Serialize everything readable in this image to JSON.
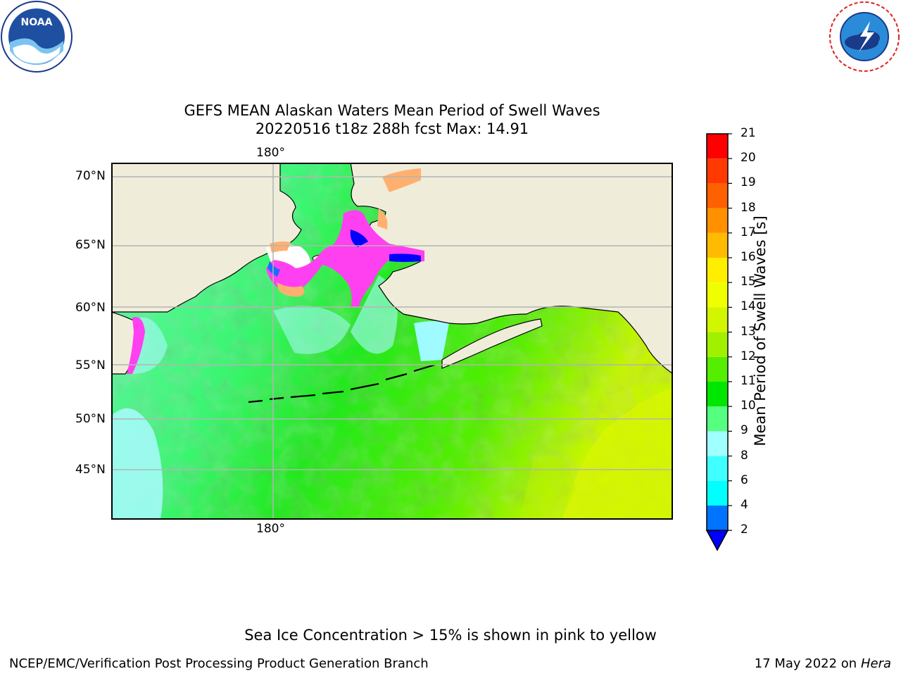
{
  "title": {
    "line1": "GEFS MEAN Alaskan Waters Mean Period of Swell Waves",
    "line2": "20220516 t18z 288h fcst   Max: 14.91"
  },
  "logos": {
    "left": {
      "name": "noaa-logo",
      "text": "NOAA",
      "ring_text": "NATIONAL OCEANIC AND ATMOSPHERIC ADMINISTRATION · U.S. DEPARTMENT OF COMMERCE"
    },
    "right": {
      "name": "nws-logo",
      "ring_text": "NATIONAL WEATHER SERVICE"
    }
  },
  "map": {
    "lon_labels": [
      "180°",
      "180°"
    ],
    "lat_labels": [
      "70°N",
      "65°N",
      "60°N",
      "55°N",
      "50°N",
      "45°N"
    ],
    "colors": {
      "land": "#efedda",
      "ice_free_white": "#ffffff",
      "coast": "#000000",
      "grid": "#b4b4b4"
    }
  },
  "colorbar": {
    "label": "Mean Period of Swell Waves [s]",
    "ticks": [
      "2",
      "4",
      "6",
      "8",
      "9",
      "10",
      "11",
      "12",
      "13",
      "14",
      "15",
      "16",
      "17",
      "18",
      "19",
      "20",
      "21"
    ],
    "colors": [
      "#0073ff",
      "#00ffff",
      "#40ffff",
      "#a0ffff",
      "#55ff80",
      "#00e600",
      "#55ee00",
      "#a0f000",
      "#d2f500",
      "#f0ff00",
      "#ffee00",
      "#ffbb00",
      "#ff9000",
      "#ff6000",
      "#ff3a00",
      "#ff0000"
    ],
    "extend_color": "#0000ff"
  },
  "footnote": "Sea Ice Concentration > 15% is shown in pink to yellow",
  "footer": {
    "left": "NCEP/EMC/Verification Post Processing Product Generation Branch",
    "right_date": "17 May 2022 on",
    "right_machine": "Hera"
  }
}
